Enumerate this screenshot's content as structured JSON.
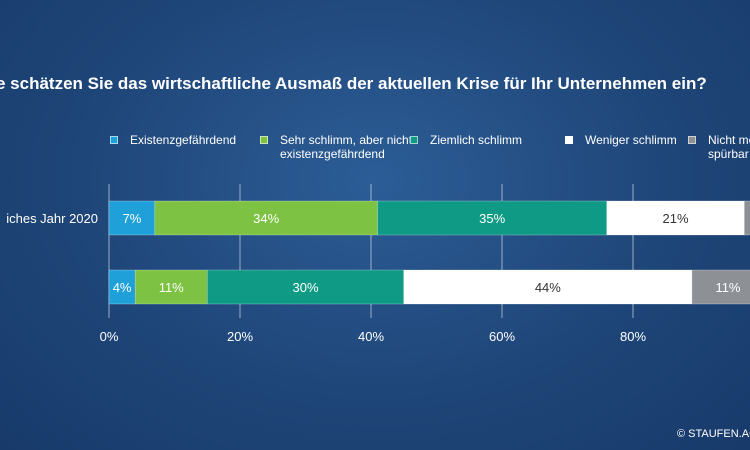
{
  "chart_data": {
    "type": "bar",
    "orientation": "horizontal",
    "stacked": true,
    "title": "e schätzen Sie das wirtschaftliche Ausmaß der aktuellen Krise für Ihr Unternehmen ein?",
    "categories": [
      "iches Jahr 2020",
      ""
    ],
    "series": [
      {
        "name": "Existenzgefährdend",
        "color": "#1fa0d8",
        "values": [
          7,
          4
        ]
      },
      {
        "name": "Sehr schlimm, aber nicht existenzgefährdend",
        "color": "#7dc242",
        "values": [
          34,
          11
        ]
      },
      {
        "name": "Ziemlich schlimm",
        "color": "#0e9a84",
        "values": [
          35,
          30
        ]
      },
      {
        "name": "Weniger schlimm",
        "color": "#ffffff",
        "values": [
          21,
          44
        ]
      },
      {
        "name": "Nicht mehr spürbar",
        "color": "#8d9196",
        "values": [
          3,
          11
        ]
      }
    ],
    "legend_labels": [
      "Existenzgefährdend",
      "Sehr schlimm, aber nicht\nexistenzgefährdend",
      "Ziemlich schlimm",
      "Weniger schlimm",
      "Nicht me\nspürbar"
    ],
    "data_labels": [
      [
        "7%",
        "34%",
        "35%",
        "21%",
        ""
      ],
      [
        "4%",
        "11%",
        "30%",
        "44%",
        "11%"
      ]
    ],
    "xticks": [
      "0%",
      "20%",
      "40%",
      "60%",
      "80%"
    ],
    "xlim": [
      0,
      100
    ],
    "grid": true,
    "legend_position": "top"
  },
  "copyright": "© STAUFEN.AG"
}
